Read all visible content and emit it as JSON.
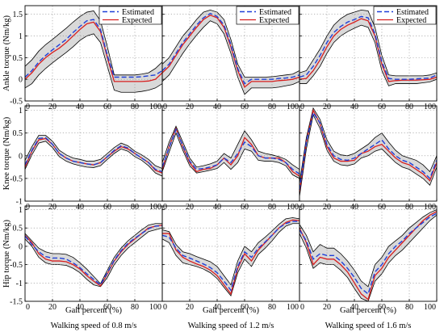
{
  "chart_data": {
    "type": "line",
    "layout": "3x3 grid of subplots; rows share y-axis label, columns share walking speed",
    "legend": {
      "entries": [
        "Estimated",
        "Expected"
      ],
      "placement": "top-right",
      "colors": {
        "Estimated": "#1f3fd8",
        "Expected": "#d81f1f"
      }
    },
    "band_color": "#d9d9d9",
    "xlabel": "Gait percent  (%)",
    "xlim": [
      0,
      100
    ],
    "xticks": [
      0,
      20,
      40,
      60,
      80,
      100
    ],
    "rows": [
      {
        "ylabel": "Ankle torque (Nm/kg)",
        "ylim": [
          -0.5,
          1.7
        ],
        "yticks": [
          -0.5,
          0,
          0.5,
          1,
          1.5
        ],
        "ytick_labels": [
          "-0.5",
          "0",
          "0.5",
          "1",
          "1.5"
        ]
      },
      {
        "ylabel": "Knee torque (Nm/kg)",
        "ylim": [
          -1,
          1.1
        ],
        "yticks": [
          -1,
          -0.5,
          0,
          0.5,
          1
        ],
        "ytick_labels": [
          "-1",
          "-0.5",
          "0",
          "0.5",
          "1"
        ]
      },
      {
        "ylabel": "Hip torque (Nm/kg)",
        "ylim": [
          -1.5,
          1.1
        ],
        "yticks": [
          -1.5,
          -1,
          -0.5,
          0,
          0.5,
          1
        ],
        "ytick_labels": [
          "-1.5",
          "-1",
          "-0.5",
          "0",
          "0.5",
          "1"
        ]
      }
    ],
    "columns": [
      {
        "speed_label": "Walking speed of 0.8 m/s"
      },
      {
        "speed_label": "Walking speed of 1.2 m/s"
      },
      {
        "speed_label": "Walking speed of 1.6 m/s"
      }
    ],
    "x": [
      0,
      5,
      10,
      15,
      20,
      25,
      30,
      35,
      40,
      45,
      50,
      55,
      60,
      65,
      70,
      75,
      80,
      85,
      90,
      95,
      100
    ],
    "panels": [
      {
        "row": 0,
        "col": 0,
        "expected": [
          0.0,
          0.15,
          0.35,
          0.5,
          0.62,
          0.72,
          0.85,
          1.0,
          1.15,
          1.28,
          1.32,
          1.1,
          0.5,
          -0.05,
          -0.05,
          -0.05,
          -0.05,
          -0.05,
          -0.04,
          0.0,
          0.15
        ],
        "estimated": [
          0.05,
          0.2,
          0.4,
          0.55,
          0.68,
          0.8,
          0.92,
          1.08,
          1.22,
          1.35,
          1.38,
          1.15,
          0.55,
          0.05,
          0.05,
          0.05,
          0.05,
          0.06,
          0.08,
          0.1,
          0.2
        ],
        "upper": [
          0.3,
          0.45,
          0.65,
          0.8,
          0.92,
          1.05,
          1.18,
          1.32,
          1.45,
          1.55,
          1.58,
          1.35,
          0.75,
          0.1,
          0.1,
          0.1,
          0.1,
          0.12,
          0.15,
          0.25,
          0.4
        ],
        "lower": [
          -0.2,
          -0.1,
          0.1,
          0.25,
          0.38,
          0.5,
          0.62,
          0.75,
          0.9,
          1.0,
          1.05,
          0.85,
          0.3,
          -0.25,
          -0.3,
          -0.3,
          -0.3,
          -0.28,
          -0.25,
          -0.2,
          -0.1
        ]
      },
      {
        "row": 0,
        "col": 1,
        "expected": [
          0.15,
          0.3,
          0.55,
          0.8,
          1.0,
          1.2,
          1.38,
          1.48,
          1.42,
          1.2,
          0.75,
          0.2,
          -0.18,
          -0.05,
          -0.05,
          -0.05,
          -0.05,
          -0.03,
          -0.02,
          0.0,
          0.05
        ],
        "estimated": [
          0.2,
          0.35,
          0.6,
          0.85,
          1.05,
          1.25,
          1.42,
          1.52,
          1.45,
          1.25,
          0.8,
          0.25,
          -0.1,
          0.0,
          0.0,
          0.0,
          0.0,
          0.02,
          0.03,
          0.05,
          0.1
        ],
        "upper": [
          0.35,
          0.5,
          0.75,
          1.0,
          1.18,
          1.38,
          1.55,
          1.6,
          1.55,
          1.38,
          0.92,
          0.35,
          0.05,
          0.05,
          0.05,
          0.05,
          0.06,
          0.08,
          0.1,
          0.12,
          0.2
        ],
        "lower": [
          -0.05,
          0.1,
          0.35,
          0.6,
          0.82,
          1.02,
          1.2,
          1.35,
          1.28,
          1.05,
          0.6,
          0.05,
          -0.35,
          -0.2,
          -0.2,
          -0.2,
          -0.2,
          -0.18,
          -0.15,
          -0.12,
          -0.05
        ]
      },
      {
        "row": 0,
        "col": 2,
        "expected": [
          0.0,
          0.02,
          0.2,
          0.45,
          0.75,
          1.0,
          1.15,
          1.25,
          1.32,
          1.4,
          1.35,
          1.0,
          0.35,
          -0.05,
          -0.03,
          -0.02,
          -0.02,
          -0.02,
          -0.01,
          0.0,
          0.05
        ],
        "estimated": [
          0.05,
          0.1,
          0.3,
          0.55,
          0.85,
          1.08,
          1.22,
          1.32,
          1.38,
          1.45,
          1.42,
          1.05,
          0.4,
          0.02,
          0.0,
          0.0,
          0.0,
          0.01,
          0.02,
          0.03,
          0.1
        ],
        "upper": [
          0.15,
          0.2,
          0.45,
          0.7,
          1.0,
          1.25,
          1.4,
          1.5,
          1.55,
          1.6,
          1.58,
          1.2,
          0.55,
          0.1,
          0.08,
          0.08,
          0.08,
          0.08,
          0.08,
          0.1,
          0.15
        ],
        "lower": [
          -0.1,
          -0.1,
          0.08,
          0.3,
          0.6,
          0.85,
          1.0,
          1.1,
          1.18,
          1.25,
          1.2,
          0.85,
          0.2,
          -0.15,
          -0.1,
          -0.1,
          -0.1,
          -0.1,
          -0.08,
          -0.06,
          0.0
        ]
      },
      {
        "row": 1,
        "col": 0,
        "expected": [
          -0.25,
          0.1,
          0.35,
          0.38,
          0.25,
          0.05,
          -0.05,
          -0.12,
          -0.15,
          -0.18,
          -0.2,
          -0.15,
          -0.02,
          0.1,
          0.2,
          0.15,
          0.05,
          -0.05,
          -0.15,
          -0.32,
          -0.38
        ],
        "estimated": [
          -0.2,
          0.12,
          0.38,
          0.4,
          0.25,
          0.05,
          -0.05,
          -0.12,
          -0.15,
          -0.18,
          -0.2,
          -0.15,
          -0.02,
          0.12,
          0.22,
          0.17,
          0.05,
          -0.05,
          -0.15,
          -0.3,
          -0.35
        ],
        "upper": [
          -0.1,
          0.2,
          0.45,
          0.45,
          0.32,
          0.12,
          0.02,
          -0.05,
          -0.08,
          -0.12,
          -0.12,
          -0.08,
          0.05,
          0.18,
          0.28,
          0.22,
          0.1,
          0.02,
          -0.08,
          -0.22,
          -0.28
        ],
        "lower": [
          -0.3,
          0.02,
          0.28,
          0.32,
          0.18,
          -0.02,
          -0.12,
          -0.18,
          -0.22,
          -0.25,
          -0.26,
          -0.22,
          -0.08,
          0.05,
          0.15,
          0.1,
          -0.02,
          -0.1,
          -0.22,
          -0.38,
          -0.45
        ]
      },
      {
        "row": 1,
        "col": 1,
        "expected": [
          -0.3,
          0.2,
          0.6,
          0.2,
          -0.15,
          -0.35,
          -0.3,
          -0.28,
          -0.2,
          -0.05,
          -0.2,
          0.0,
          0.4,
          0.25,
          0.0,
          -0.05,
          -0.05,
          -0.05,
          -0.15,
          -0.35,
          -0.45
        ],
        "estimated": [
          -0.25,
          0.18,
          0.58,
          0.22,
          -0.12,
          -0.3,
          -0.28,
          -0.25,
          -0.2,
          -0.05,
          -0.15,
          0.05,
          0.3,
          0.2,
          0.0,
          -0.05,
          -0.05,
          -0.08,
          -0.15,
          -0.3,
          -0.4
        ],
        "upper": [
          -0.15,
          0.3,
          0.65,
          0.3,
          -0.05,
          -0.25,
          -0.22,
          -0.18,
          -0.12,
          0.05,
          -0.05,
          0.25,
          0.55,
          0.35,
          0.1,
          0.05,
          0.02,
          -0.02,
          -0.08,
          -0.2,
          -0.3
        ],
        "lower": [
          -0.35,
          0.08,
          0.5,
          0.12,
          -0.22,
          -0.38,
          -0.35,
          -0.32,
          -0.28,
          -0.15,
          -0.3,
          -0.15,
          0.15,
          0.1,
          -0.1,
          -0.12,
          -0.12,
          -0.15,
          -0.22,
          -0.42,
          -0.5
        ]
      },
      {
        "row": 1,
        "col": 2,
        "expected": [
          -0.8,
          0.3,
          1.0,
          0.7,
          0.2,
          -0.05,
          -0.12,
          -0.12,
          -0.1,
          0.05,
          0.1,
          0.2,
          0.25,
          0.1,
          -0.05,
          -0.15,
          -0.2,
          -0.3,
          -0.4,
          -0.55,
          -0.15
        ],
        "estimated": [
          -0.75,
          0.3,
          0.95,
          0.72,
          0.25,
          0.0,
          -0.08,
          -0.1,
          -0.05,
          0.05,
          0.15,
          0.25,
          0.35,
          0.15,
          0.0,
          -0.1,
          -0.15,
          -0.25,
          -0.35,
          -0.5,
          -0.1
        ],
        "upper": [
          -0.6,
          0.4,
          1.05,
          0.8,
          0.35,
          0.1,
          0.02,
          0.0,
          0.05,
          0.15,
          0.25,
          0.4,
          0.5,
          0.3,
          0.12,
          0.0,
          -0.05,
          -0.1,
          -0.2,
          -0.35,
          0.0
        ],
        "lower": [
          -0.9,
          0.15,
          0.9,
          0.6,
          0.12,
          -0.12,
          -0.2,
          -0.22,
          -0.18,
          -0.05,
          0.0,
          0.1,
          0.15,
          0.0,
          -0.15,
          -0.25,
          -0.3,
          -0.4,
          -0.5,
          -0.65,
          -0.25
        ]
      },
      {
        "row": 2,
        "col": 0,
        "expected": [
          0.3,
          0.1,
          -0.2,
          -0.35,
          -0.4,
          -0.4,
          -0.42,
          -0.5,
          -0.62,
          -0.8,
          -0.95,
          -1.08,
          -0.75,
          -0.4,
          -0.15,
          0.05,
          0.2,
          0.35,
          0.5,
          0.55,
          0.58
        ],
        "estimated": [
          0.28,
          0.05,
          -0.15,
          -0.28,
          -0.32,
          -0.32,
          -0.35,
          -0.45,
          -0.58,
          -0.75,
          -0.9,
          -1.05,
          -0.72,
          -0.38,
          -0.12,
          0.08,
          0.22,
          0.35,
          0.48,
          0.55,
          0.56
        ],
        "upper": [
          0.35,
          0.15,
          -0.05,
          -0.15,
          -0.2,
          -0.2,
          -0.22,
          -0.3,
          -0.45,
          -0.62,
          -0.82,
          -1.02,
          -0.65,
          -0.3,
          -0.05,
          0.15,
          0.3,
          0.45,
          0.58,
          0.62,
          0.62
        ],
        "lower": [
          0.2,
          0.0,
          -0.3,
          -0.45,
          -0.5,
          -0.5,
          -0.52,
          -0.6,
          -0.72,
          -0.9,
          -1.05,
          -1.1,
          -0.85,
          -0.5,
          -0.25,
          -0.05,
          0.1,
          0.25,
          0.4,
          0.45,
          0.5
        ]
      },
      {
        "row": 2,
        "col": 1,
        "expected": [
          0.35,
          0.35,
          -0.1,
          -0.3,
          -0.4,
          -0.48,
          -0.55,
          -0.65,
          -0.8,
          -1.05,
          -1.3,
          -0.6,
          -0.2,
          -0.4,
          -0.1,
          0.1,
          0.3,
          0.5,
          0.65,
          0.72,
          0.7
        ],
        "estimated": [
          0.3,
          0.25,
          -0.05,
          -0.25,
          -0.32,
          -0.4,
          -0.48,
          -0.58,
          -0.72,
          -0.95,
          -1.2,
          -0.55,
          -0.15,
          -0.3,
          -0.05,
          0.12,
          0.3,
          0.5,
          0.62,
          0.68,
          0.68
        ],
        "upper": [
          0.45,
          0.4,
          0.05,
          -0.15,
          -0.2,
          -0.28,
          -0.35,
          -0.42,
          -0.55,
          -0.8,
          -1.05,
          -0.4,
          0.0,
          -0.15,
          0.1,
          0.25,
          0.42,
          0.6,
          0.75,
          0.78,
          0.75
        ],
        "lower": [
          0.2,
          0.1,
          -0.25,
          -0.45,
          -0.5,
          -0.55,
          -0.62,
          -0.72,
          -0.88,
          -1.12,
          -1.35,
          -0.72,
          -0.35,
          -0.55,
          -0.22,
          -0.05,
          0.15,
          0.38,
          0.55,
          0.62,
          0.62
        ]
      },
      {
        "row": 2,
        "col": 2,
        "expected": [
          0.5,
          0.1,
          -0.5,
          -0.3,
          -0.35,
          -0.35,
          -0.5,
          -0.7,
          -1.0,
          -1.3,
          -1.45,
          -0.8,
          -0.6,
          -0.3,
          -0.1,
          0.1,
          0.3,
          0.5,
          0.7,
          0.85,
          0.95
        ],
        "estimated": [
          0.45,
          0.15,
          -0.35,
          -0.2,
          -0.25,
          -0.25,
          -0.4,
          -0.6,
          -0.85,
          -1.15,
          -1.3,
          -0.7,
          -0.5,
          -0.2,
          0.0,
          0.15,
          0.35,
          0.5,
          0.65,
          0.8,
          0.9
        ],
        "upper": [
          0.6,
          0.3,
          -0.15,
          0.05,
          -0.05,
          -0.05,
          -0.2,
          -0.4,
          -0.65,
          -0.95,
          -1.1,
          -0.5,
          -0.3,
          0.0,
          0.15,
          0.3,
          0.5,
          0.65,
          0.8,
          0.92,
          1.0
        ],
        "lower": [
          0.35,
          -0.05,
          -0.6,
          -0.45,
          -0.5,
          -0.5,
          -0.65,
          -0.85,
          -1.15,
          -1.42,
          -1.5,
          -0.95,
          -0.75,
          -0.45,
          -0.25,
          -0.1,
          0.1,
          0.3,
          0.5,
          0.7,
          0.85
        ]
      }
    ]
  }
}
